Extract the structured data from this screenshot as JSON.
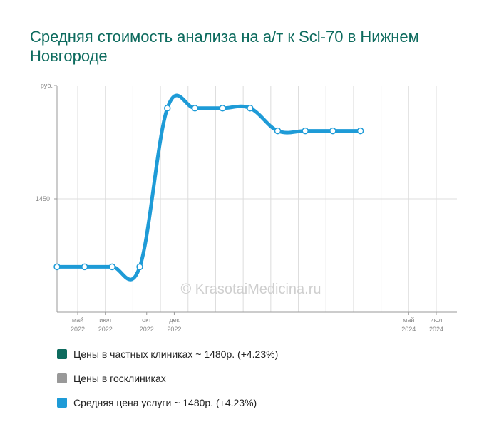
{
  "title": "Средняя стоимость анализа на а/т к Scl-70 в Нижнем Новгороде",
  "watermark": "© KrasotaiMedicina.ru",
  "legend": [
    {
      "label": "Цены в частных клиниках ~ 1480р. (+4.23%)",
      "color": "#0d6b5e"
    },
    {
      "label": "Цены в госклиниках",
      "color": "#999999"
    },
    {
      "label": "Средняя цена услуги ~ 1480р. (+4.23%)",
      "color": "#1e9bd7"
    }
  ],
  "chart_data": {
    "type": "line",
    "title": "Средняя стоимость анализа на а/т к Scl-70 в Нижнем Новгороде",
    "y_unit_label": "руб.",
    "y_ticks": [
      {
        "value": 1450,
        "label": "1450"
      }
    ],
    "ylim": [
      1395,
      1505
    ],
    "grid": true,
    "legend_position": "bottom",
    "x_month_ticks": [
      {
        "month": 5,
        "label_top": "май",
        "label_bottom": "2022"
      },
      {
        "month": 7,
        "label_top": "июл",
        "label_bottom": "2022"
      },
      {
        "month": 10,
        "label_top": "окт",
        "label_bottom": "2022"
      },
      {
        "month": 12,
        "label_top": "дек",
        "label_bottom": "2022"
      },
      {
        "month": 29,
        "label_top": "май",
        "label_bottom": "2024"
      },
      {
        "month": 31,
        "label_top": "июл",
        "label_bottom": "2024"
      }
    ],
    "x_domain_months": [
      3.5,
      32.5
    ],
    "series": [
      {
        "name": "Средняя цена услуги",
        "color": "#1e9bd7",
        "x_months": [
          3.5,
          5.5,
          7.5,
          9.5,
          11.5,
          13.5,
          15.5,
          17.5,
          19.5,
          21.5,
          23.5,
          25.5
        ],
        "values": [
          1417,
          1417,
          1417,
          1417,
          1494,
          1494,
          1494,
          1494,
          1483,
          1483,
          1483,
          1483
        ]
      }
    ]
  }
}
